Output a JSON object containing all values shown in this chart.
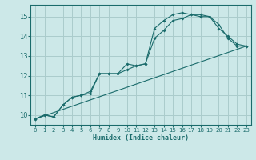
{
  "xlabel": "Humidex (Indice chaleur)",
  "ylabel": "",
  "bg_color": "#cce8e8",
  "grid_color": "#aacccc",
  "line_color": "#1a6b6b",
  "xlim": [
    -0.5,
    23.5
  ],
  "ylim": [
    9.5,
    15.6
  ],
  "xticks": [
    0,
    1,
    2,
    3,
    4,
    5,
    6,
    7,
    8,
    9,
    10,
    11,
    12,
    13,
    14,
    15,
    16,
    17,
    18,
    19,
    20,
    21,
    22,
    23
  ],
  "yticks": [
    10,
    11,
    12,
    13,
    14,
    15
  ],
  "series": [
    {
      "x": [
        0,
        1,
        2,
        3,
        4,
        5,
        6,
        7,
        8,
        9,
        10,
        11,
        12,
        13,
        14,
        15,
        16,
        17,
        18,
        19,
        20,
        21,
        22,
        23
      ],
      "y": [
        9.8,
        10.0,
        9.9,
        10.5,
        10.9,
        11.0,
        11.1,
        12.1,
        12.1,
        12.1,
        12.6,
        12.5,
        12.6,
        13.9,
        14.3,
        14.8,
        14.9,
        15.1,
        15.1,
        15.0,
        14.6,
        13.9,
        13.5,
        13.5
      ],
      "has_marker": true
    },
    {
      "x": [
        0,
        1,
        2,
        3,
        4,
        5,
        6,
        7,
        8,
        9,
        10,
        11,
        12,
        13,
        14,
        15,
        16,
        17,
        18,
        19,
        20,
        21,
        22,
        23
      ],
      "y": [
        9.8,
        10.0,
        9.9,
        10.5,
        10.9,
        11.0,
        11.2,
        12.1,
        12.1,
        12.1,
        12.3,
        12.5,
        12.6,
        14.4,
        14.8,
        15.1,
        15.2,
        15.1,
        15.0,
        15.0,
        14.4,
        14.0,
        13.6,
        13.5
      ],
      "has_marker": true
    },
    {
      "x": [
        0,
        23
      ],
      "y": [
        9.8,
        13.5
      ],
      "has_marker": false
    }
  ]
}
